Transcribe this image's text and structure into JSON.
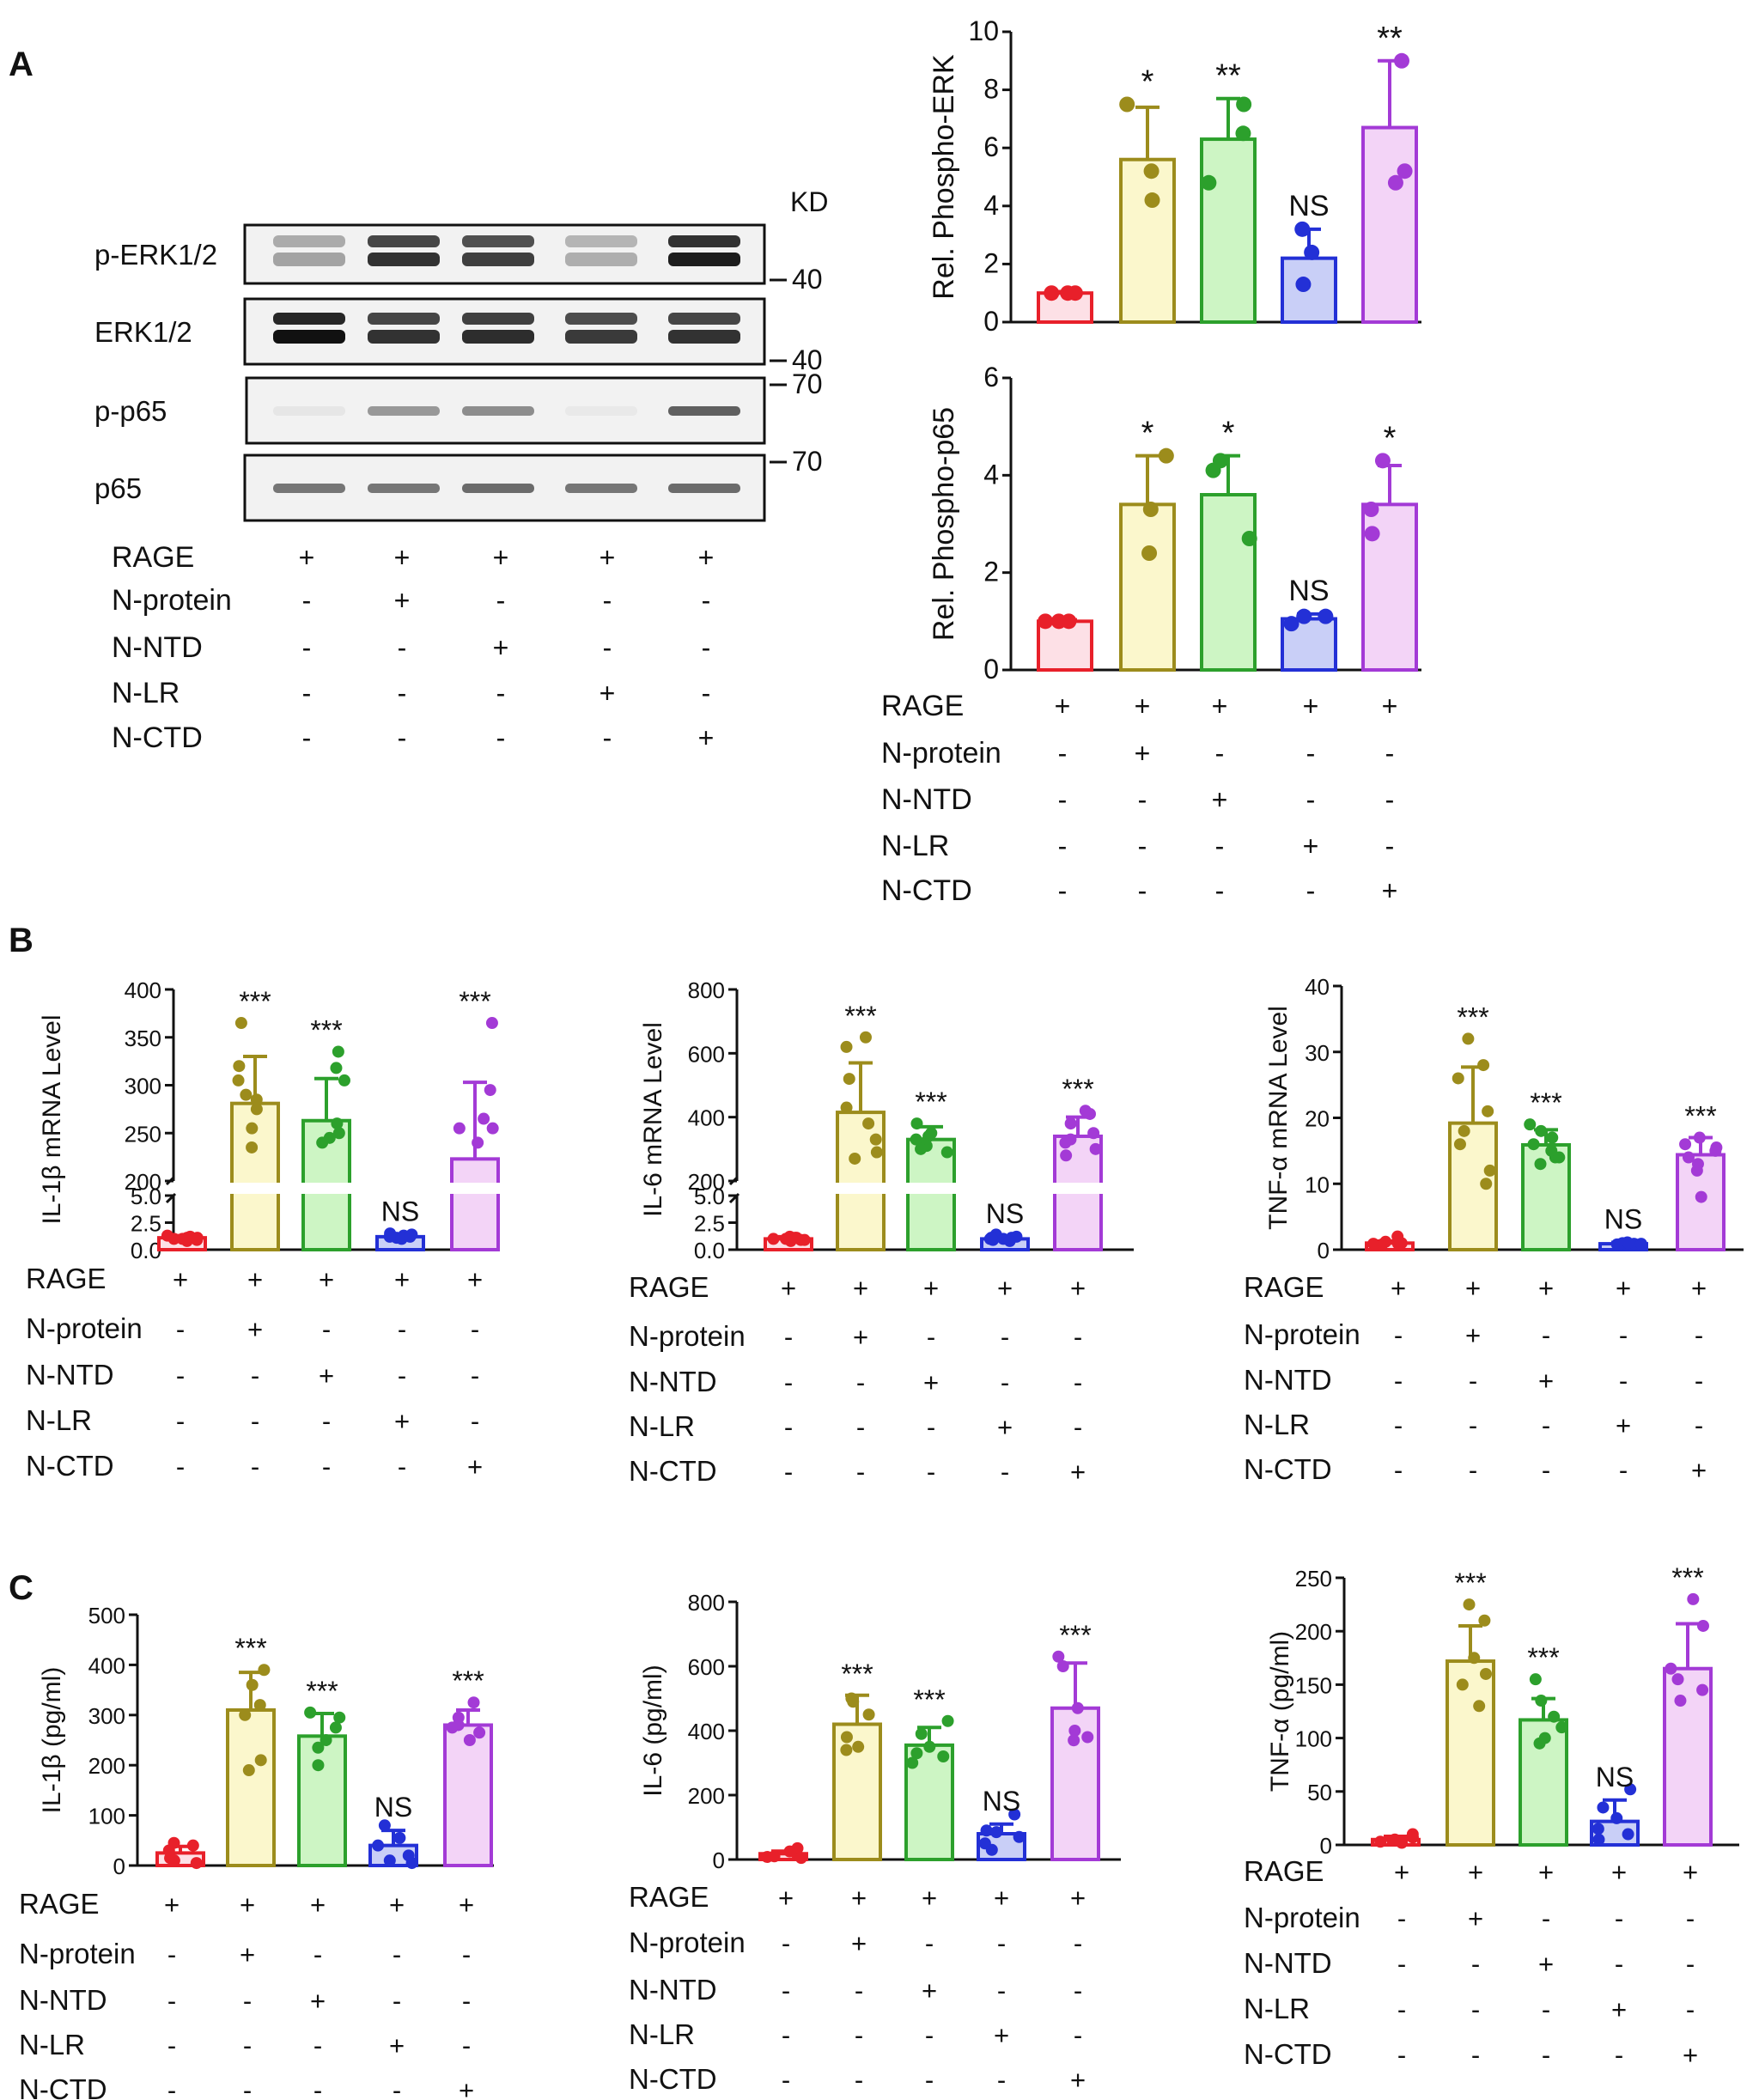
{
  "figure": {
    "panel_labels": [
      "A",
      "B",
      "C"
    ],
    "kd_label": "KD"
  },
  "condition_table": {
    "rows": [
      "RAGE",
      "N-protein",
      "N-NTD",
      "N-LR",
      "N-CTD"
    ],
    "marks": [
      [
        "+",
        "+",
        "+",
        "+",
        "+"
      ],
      [
        "-",
        "+",
        "-",
        "-",
        "-"
      ],
      [
        "-",
        "-",
        "+",
        "-",
        "-"
      ],
      [
        "-",
        "-",
        "-",
        "+",
        "-"
      ],
      [
        "-",
        "-",
        "-",
        "-",
        "+"
      ]
    ]
  },
  "colors": {
    "group_stroke": [
      "#e8202a",
      "#9c8c1c",
      "#2ca02c",
      "#2330d6",
      "#a33ad6"
    ],
    "group_fill": [
      "#fde0e6",
      "#fbf7cc",
      "#cdf5c4",
      "#c9cff7",
      "#f3d4f7"
    ]
  },
  "western_blot": {
    "rows": [
      {
        "label": "p-ERK1/2",
        "marker": "40",
        "bands": [
          0.35,
          0.85,
          0.8,
          0.3,
          0.95
        ],
        "double": true
      },
      {
        "label": "ERK1/2",
        "marker": "40",
        "bands": [
          1.0,
          0.85,
          0.88,
          0.82,
          0.85
        ],
        "double": true
      },
      {
        "label": "p-p65",
        "marker": "70",
        "bands": [
          0.05,
          0.4,
          0.45,
          0.0,
          0.65
        ],
        "double": false
      },
      {
        "label": "p65",
        "marker": "70",
        "bands": [
          0.55,
          0.55,
          0.6,
          0.55,
          0.6
        ],
        "double": false
      }
    ]
  },
  "chart_data": [
    {
      "id": "phospho-erk",
      "type": "bar",
      "title": "",
      "xlabel": "",
      "ylabel": "Rel. Phospho-ERK",
      "categories": [
        "RAGE",
        "N-protein",
        "N-NTD",
        "N-LR",
        "N-CTD"
      ],
      "ylim": [
        0,
        10
      ],
      "yticks": [
        0,
        2,
        4,
        6,
        8,
        10
      ],
      "ytick_labels": [
        "0",
        "2",
        "4",
        "6",
        "8",
        "10"
      ],
      "values": [
        1.0,
        5.6,
        6.3,
        2.2,
        6.7
      ],
      "errors": [
        0.05,
        1.8,
        1.4,
        1.0,
        2.3
      ],
      "points": [
        [
          1,
          1,
          1
        ],
        [
          7.5,
          5.2,
          4.2
        ],
        [
          7.5,
          6.5,
          4.8
        ],
        [
          3.2,
          2.4,
          1.3
        ],
        [
          9.0,
          5.2,
          4.8
        ]
      ],
      "significance": [
        "",
        "*",
        "**",
        "NS",
        "**"
      ]
    },
    {
      "id": "phospho-p65",
      "type": "bar",
      "title": "",
      "xlabel": "",
      "ylabel": "Rel. Phospho-p65",
      "categories": [
        "RAGE",
        "N-protein",
        "N-NTD",
        "N-LR",
        "N-CTD"
      ],
      "ylim": [
        0,
        6
      ],
      "yticks": [
        0,
        2,
        4,
        6
      ],
      "ytick_labels": [
        "0",
        "2",
        "4",
        "6"
      ],
      "values": [
        1.0,
        3.4,
        3.6,
        1.05,
        3.4
      ],
      "errors": [
        0.03,
        1.0,
        0.8,
        0.1,
        0.8
      ],
      "points": [
        [
          1,
          1,
          1
        ],
        [
          4.4,
          3.3,
          2.4
        ],
        [
          4.3,
          4.1,
          2.7
        ],
        [
          0.95,
          1.1,
          1.1
        ],
        [
          4.3,
          3.3,
          2.8
        ]
      ],
      "significance": [
        "",
        "*",
        "*",
        "NS",
        "*"
      ]
    },
    {
      "id": "il1b-mrna",
      "type": "bar",
      "title": "",
      "xlabel": "",
      "ylabel": "IL-1β mRNA Level",
      "broken_axis": {
        "lower": [
          0,
          5
        ],
        "upper": [
          200,
          400
        ]
      },
      "categories": [
        "RAGE",
        "N-protein",
        "N-NTD",
        "N-LR",
        "N-CTD"
      ],
      "yticks": [
        0,
        2.5,
        5,
        200,
        250,
        300,
        350,
        400
      ],
      "ytick_labels": [
        "0.0",
        "2.5",
        "5.0",
        "200",
        "250",
        "300",
        "350",
        "400"
      ],
      "values": [
        1.1,
        281,
        263,
        1.2,
        223
      ],
      "errors": [
        0.2,
        49,
        44,
        0.2,
        80
      ],
      "points": [
        [
          0.8,
          1.0,
          1.1,
          1.2,
          1.3,
          1.0,
          0.9,
          1.1
        ],
        [
          365,
          320,
          305,
          290,
          285,
          275,
          255,
          235
        ],
        [
          335,
          318,
          305,
          260,
          250,
          245,
          240
        ],
        [
          1.5,
          1.3,
          1.1,
          1.2,
          1.4,
          1.0,
          1.2
        ],
        [
          365,
          295,
          265,
          255,
          255,
          240
        ]
      ],
      "significance": [
        "",
        "***",
        "***",
        "NS",
        "***"
      ]
    },
    {
      "id": "il6-mrna",
      "type": "bar",
      "title": "",
      "xlabel": "",
      "ylabel": "IL-6 mRNA Level",
      "broken_axis": {
        "lower": [
          0,
          5
        ],
        "upper": [
          200,
          800
        ]
      },
      "categories": [
        "RAGE",
        "N-protein",
        "N-NTD",
        "N-LR",
        "N-CTD"
      ],
      "yticks": [
        0,
        2.5,
        5,
        200,
        400,
        600,
        800
      ],
      "ytick_labels": [
        "0.0",
        "2.5",
        "5.0",
        "200",
        "400",
        "600",
        "800"
      ],
      "values": [
        1.0,
        415,
        330,
        1.0,
        340
      ],
      "errors": [
        0.2,
        155,
        40,
        0.2,
        60
      ],
      "points": [
        [
          0.8,
          0.9,
          1.1,
          1.2,
          1.0,
          0.9,
          1.1,
          1.0
        ],
        [
          650,
          620,
          520,
          430,
          380,
          330,
          290,
          270
        ],
        [
          380,
          350,
          340,
          330,
          320,
          310,
          300,
          290
        ],
        [
          1.4,
          1.1,
          1.0,
          0.9,
          1.2,
          0.8,
          1.0,
          1.1
        ],
        [
          420,
          410,
          380,
          350,
          330,
          320,
          300,
          280
        ]
      ],
      "significance": [
        "",
        "***",
        "***",
        "NS",
        "***"
      ]
    },
    {
      "id": "tnfa-mrna",
      "type": "bar",
      "title": "",
      "xlabel": "",
      "ylabel": "TNF-α mRNA Level",
      "categories": [
        "RAGE",
        "N-protein",
        "N-NTD",
        "N-LR",
        "N-CTD"
      ],
      "ylim": [
        0,
        40
      ],
      "yticks": [
        0,
        10,
        20,
        30,
        40
      ],
      "ytick_labels": [
        "0",
        "10",
        "20",
        "30",
        "40"
      ],
      "values": [
        1.0,
        19.2,
        15.9,
        0.9,
        14.4
      ],
      "errors": [
        0.3,
        8.5,
        2.3,
        0.2,
        2.6
      ],
      "points": [
        [
          2.0,
          1.2,
          0.9,
          0.8,
          0.9,
          1.0
        ],
        [
          32,
          28,
          26,
          21,
          18,
          16,
          12,
          10
        ],
        [
          19,
          18,
          17,
          16,
          15,
          14,
          14,
          13
        ],
        [
          1.1,
          0.8,
          0.9,
          1.0,
          0.8,
          0.9,
          1.0
        ],
        [
          17,
          16,
          15.5,
          15,
          14,
          13,
          12,
          8
        ]
      ],
      "significance": [
        "",
        "***",
        "***",
        "NS",
        "***"
      ]
    },
    {
      "id": "il1b-elisa",
      "type": "bar",
      "title": "",
      "xlabel": "",
      "ylabel": "IL-1β (pg/ml)",
      "categories": [
        "RAGE",
        "N-protein",
        "N-NTD",
        "N-LR",
        "N-CTD"
      ],
      "ylim": [
        0,
        500
      ],
      "yticks": [
        0,
        100,
        200,
        300,
        400,
        500
      ],
      "ytick_labels": [
        "0",
        "100",
        "200",
        "300",
        "400",
        "500"
      ],
      "values": [
        25,
        310,
        258,
        40,
        280
      ],
      "errors": [
        13,
        75,
        45,
        30,
        30
      ],
      "points": [
        [
          45,
          40,
          30,
          10,
          5,
          15
        ],
        [
          390,
          360,
          320,
          300,
          210,
          190
        ],
        [
          305,
          295,
          275,
          250,
          235,
          200
        ],
        [
          80,
          55,
          40,
          20,
          10,
          5
        ],
        [
          325,
          295,
          280,
          275,
          265,
          250
        ]
      ],
      "significance": [
        "",
        "***",
        "***",
        "NS",
        "***"
      ]
    },
    {
      "id": "il6-elisa",
      "type": "bar",
      "title": "",
      "xlabel": "",
      "ylabel": "IL-6 (pg/ml)",
      "categories": [
        "RAGE",
        "N-protein",
        "N-NTD",
        "N-LR",
        "N-CTD"
      ],
      "ylim": [
        0,
        800
      ],
      "yticks": [
        0,
        200,
        400,
        600,
        800
      ],
      "ytick_labels": [
        "0",
        "200",
        "400",
        "600",
        "800"
      ],
      "values": [
        18,
        420,
        355,
        80,
        470
      ],
      "errors": [
        8,
        90,
        55,
        30,
        140
      ],
      "points": [
        [
          35,
          25,
          20,
          10,
          5,
          8
        ],
        [
          500,
          490,
          450,
          380,
          350,
          340
        ],
        [
          430,
          390,
          350,
          330,
          320,
          300
        ],
        [
          140,
          90,
          85,
          70,
          50,
          30
        ],
        [
          630,
          600,
          470,
          400,
          380,
          370
        ]
      ],
      "significance": [
        "",
        "***",
        "***",
        "NS",
        "***"
      ]
    },
    {
      "id": "tnfa-elisa",
      "type": "bar",
      "title": "",
      "xlabel": "",
      "ylabel": "TNF-α (pg/ml)",
      "categories": [
        "RAGE",
        "N-protein",
        "N-NTD",
        "N-LR",
        "N-CTD"
      ],
      "ylim": [
        0,
        250
      ],
      "yticks": [
        0,
        50,
        100,
        150,
        200,
        250
      ],
      "ytick_labels": [
        "0",
        "50",
        "100",
        "150",
        "200",
        "250"
      ],
      "values": [
        5,
        172,
        117,
        22,
        165
      ],
      "errors": [
        3,
        33,
        20,
        20,
        42
      ],
      "points": [
        [
          10,
          7,
          5,
          3,
          2,
          4
        ],
        [
          225,
          210,
          175,
          160,
          150,
          130
        ],
        [
          155,
          135,
          120,
          110,
          100,
          95
        ],
        [
          52,
          35,
          25,
          15,
          10,
          5
        ],
        [
          230,
          205,
          165,
          155,
          145,
          135
        ]
      ],
      "significance": [
        "",
        "***",
        "***",
        "NS",
        "***"
      ]
    }
  ]
}
